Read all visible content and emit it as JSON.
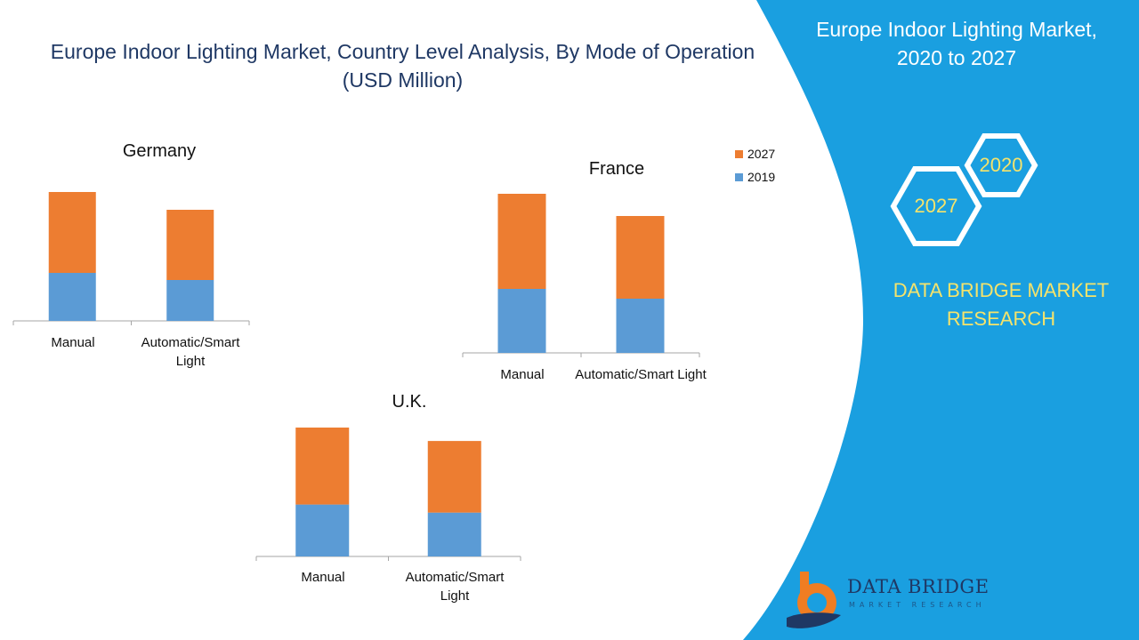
{
  "main_title": {
    "line1": "Europe Indoor Lighting Market, Country Level Analysis, By Mode of Operation",
    "line2": "(USD Million)"
  },
  "panel": {
    "title_line1": "Europe Indoor Lighting Market,",
    "title_line2": "2020 to 2027",
    "hex_a": "2020",
    "hex_b": "2027",
    "brand_line1": "DATA BRIDGE MARKET",
    "brand_line2": "RESEARCH",
    "logo_text": "DATA BRIDGE",
    "logo_sub": "MARKET RESEARCH",
    "colors": {
      "panel_blue": "#1a9fe0",
      "brand_yellow": "#f5e36b",
      "logo_orange": "#f07d22"
    }
  },
  "legend": {
    "items": [
      {
        "label": "2027",
        "color": "#ed7d31"
      },
      {
        "label": "2019",
        "color": "#5b9bd5"
      }
    ]
  },
  "chart_data": [
    {
      "type": "bar",
      "stacked": true,
      "title": "Germany",
      "categories": [
        "Manual",
        "Automatic/Smart Light"
      ],
      "category_lines": [
        [
          "Manual"
        ],
        [
          "Automatic/Smart",
          "Light"
        ]
      ],
      "series": [
        {
          "name": "2019",
          "values": [
            54,
            46
          ],
          "color": "#5b9bd5"
        },
        {
          "name": "2027",
          "values": [
            91,
            79
          ],
          "color": "#ed7d31"
        }
      ],
      "ylim": [
        0,
        145
      ]
    },
    {
      "type": "bar",
      "stacked": true,
      "title": "France",
      "categories": [
        "Manual",
        "Automatic/Smart Light"
      ],
      "category_lines": [
        [
          "Manual"
        ],
        [
          "Automatic/Smart Light"
        ]
      ],
      "series": [
        {
          "name": "2019",
          "values": [
            72,
            61
          ],
          "color": "#5b9bd5"
        },
        {
          "name": "2027",
          "values": [
            107,
            93
          ],
          "color": "#ed7d31"
        }
      ],
      "ylim": [
        0,
        179
      ]
    },
    {
      "type": "bar",
      "stacked": true,
      "title": "U.K.",
      "categories": [
        "Manual",
        "Automatic/Smart Light"
      ],
      "category_lines": [
        [
          "Manual"
        ],
        [
          "Automatic/Smart",
          "Light"
        ]
      ],
      "series": [
        {
          "name": "2019",
          "values": [
            58,
            49
          ],
          "color": "#5b9bd5"
        },
        {
          "name": "2027",
          "values": [
            86,
            80
          ],
          "color": "#ed7d31"
        }
      ],
      "ylim": [
        0,
        144
      ]
    }
  ]
}
